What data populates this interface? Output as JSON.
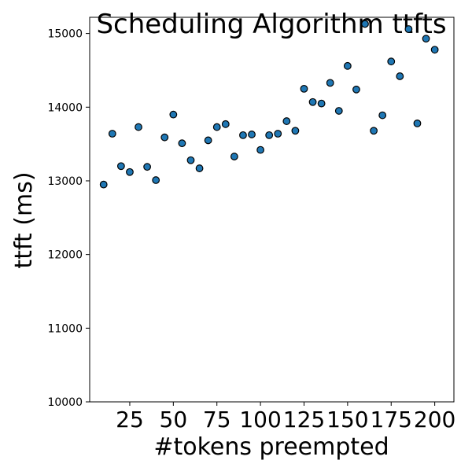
{
  "chart_data": {
    "type": "scatter",
    "title": "Scheduling Algorithm ttfts",
    "xlabel": "#tokens preempted",
    "ylabel": "ttft (ms)",
    "xlim": [
      2,
      211
    ],
    "ylim": [
      10000,
      15220
    ],
    "xticks": [
      25,
      50,
      75,
      100,
      125,
      150,
      175,
      200
    ],
    "yticks": [
      10000,
      11000,
      12000,
      13000,
      14000,
      15000
    ],
    "grid": false,
    "legend": "none",
    "marker_color": "#1f77b4",
    "marker_edge_color": "#000000",
    "series": [
      {
        "x": [
          10,
          15,
          20,
          25,
          30,
          35,
          40,
          45,
          50,
          55,
          60,
          65,
          70,
          75,
          80,
          85,
          90,
          95,
          100,
          105,
          110,
          115,
          120,
          125,
          130,
          135,
          140,
          145,
          150,
          155,
          160,
          165,
          170,
          175,
          180,
          185,
          190,
          195,
          200
        ],
        "y": [
          12950,
          13640,
          13200,
          13120,
          13730,
          13190,
          13010,
          13590,
          13900,
          13510,
          13280,
          13170,
          13550,
          13730,
          13770,
          13330,
          13620,
          13630,
          13420,
          13620,
          13640,
          13810,
          13680,
          14250,
          14070,
          14050,
          14330,
          13950,
          14560,
          14240,
          15130,
          13680,
          13890,
          14620,
          14420,
          15060,
          13780,
          14930,
          14780
        ]
      }
    ]
  }
}
